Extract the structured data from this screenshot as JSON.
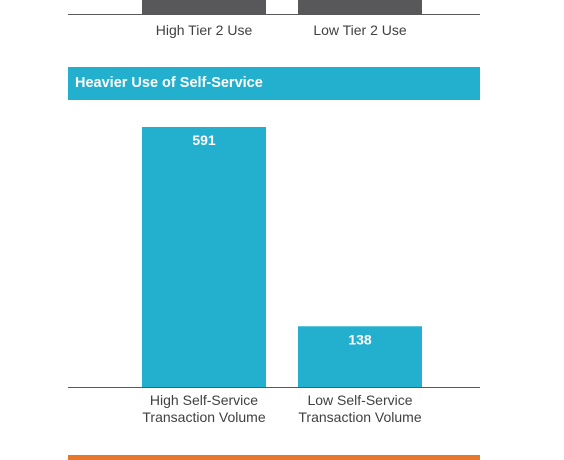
{
  "colors": {
    "dark_bar": "#58585a",
    "accent_blue": "#23afce",
    "axis": "#595959",
    "label": "#404040",
    "bottom_rule": "#e8772b"
  },
  "chart_data": [
    {
      "type": "bar",
      "categories": [
        "High Tier 2 Use",
        "Low Tier 2 Use"
      ],
      "values": [
        null,
        null
      ],
      "title": "",
      "xlabel": "",
      "ylabel": "",
      "legend": "none",
      "grid": false
    },
    {
      "type": "bar",
      "title": "Heavier Use of Self-Service",
      "categories": [
        "High Self-Service Transaction Volume",
        "Low Self-Service Transaction Volume"
      ],
      "category_lines": [
        [
          "High Self-Service",
          "Transaction Volume"
        ],
        [
          "Low Self-Service",
          "Transaction Volume"
        ]
      ],
      "values": [
        591,
        138
      ],
      "data_labels": [
        "591",
        "138"
      ],
      "ylim": [
        0,
        591
      ],
      "xlabel": "",
      "ylabel": "",
      "legend": "none",
      "grid": false
    }
  ]
}
